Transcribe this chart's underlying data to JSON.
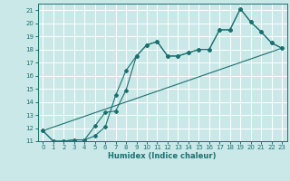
{
  "xlabel": "Humidex (Indice chaleur)",
  "background_color": "#cbe8e8",
  "grid_color": "#ffffff",
  "line_color": "#1a7070",
  "xlim": [
    -0.5,
    23.5
  ],
  "ylim": [
    11,
    21.5
  ],
  "xticks": [
    0,
    1,
    2,
    3,
    4,
    5,
    6,
    7,
    8,
    9,
    10,
    11,
    12,
    13,
    14,
    15,
    16,
    17,
    18,
    19,
    20,
    21,
    22,
    23
  ],
  "yticks": [
    11,
    12,
    13,
    14,
    15,
    16,
    17,
    18,
    19,
    20,
    21
  ],
  "line1_x": [
    0,
    1,
    2,
    3,
    4,
    5,
    6,
    7,
    8,
    9,
    10,
    11,
    12,
    13,
    14,
    15,
    16,
    17,
    18,
    19,
    20,
    21,
    22,
    23
  ],
  "line1_y": [
    11.8,
    11.0,
    11.0,
    11.1,
    11.1,
    11.4,
    12.1,
    14.5,
    16.4,
    17.5,
    18.35,
    18.6,
    17.5,
    17.5,
    17.75,
    18.0,
    18.0,
    19.5,
    19.5,
    21.1,
    20.1,
    19.35,
    18.5,
    18.1
  ],
  "line2_x": [
    0,
    1,
    2,
    3,
    4,
    5,
    6,
    7,
    8,
    9,
    10,
    11,
    12,
    13,
    14,
    15,
    16,
    17,
    18,
    19,
    20,
    21,
    22,
    23
  ],
  "line2_y": [
    11.8,
    11.0,
    11.0,
    11.1,
    11.1,
    12.15,
    13.2,
    13.3,
    14.9,
    17.5,
    18.35,
    18.6,
    17.5,
    17.5,
    17.75,
    18.0,
    18.0,
    19.5,
    19.5,
    21.1,
    20.1,
    19.35,
    18.5,
    18.1
  ],
  "line3_x": [
    0,
    23
  ],
  "line3_y": [
    11.8,
    18.1
  ]
}
